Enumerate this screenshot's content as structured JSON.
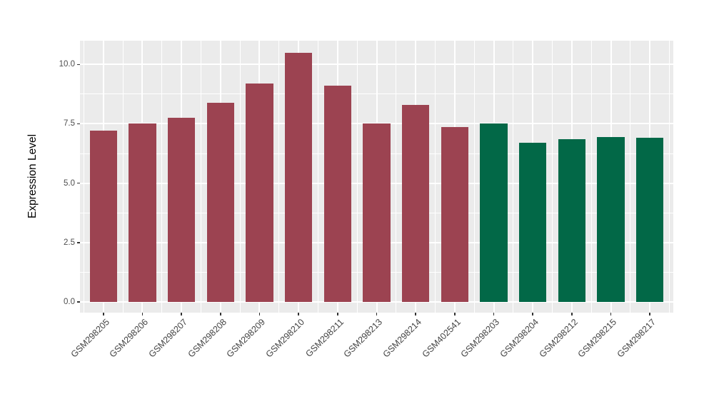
{
  "chart_data": {
    "type": "bar",
    "title": "",
    "xlabel": "",
    "ylabel": "Expression Level",
    "categories": [
      "GSM298205",
      "GSM298206",
      "GSM298207",
      "GSM298208",
      "GSM298209",
      "GSM298210",
      "GSM298211",
      "GSM298213",
      "GSM298214",
      "GSM402541",
      "GSM298203",
      "GSM298204",
      "GSM298212",
      "GSM298215",
      "GSM298217"
    ],
    "values": [
      7.2,
      7.5,
      7.75,
      8.4,
      9.2,
      10.5,
      9.1,
      7.5,
      8.3,
      7.35,
      7.5,
      6.7,
      6.85,
      6.95,
      6.9
    ],
    "groups": [
      "group1",
      "group1",
      "group1",
      "group1",
      "group1",
      "group1",
      "group1",
      "group1",
      "group1",
      "group1",
      "group2",
      "group2",
      "group2",
      "group2",
      "group2"
    ],
    "group_colors": {
      "group1": "#9C4351",
      "group2": "#026847"
    },
    "yticks": [
      0.0,
      2.5,
      5.0,
      7.5,
      10.0
    ],
    "ytick_labels": [
      "0.0",
      "2.5",
      "5.0",
      "7.5",
      "10.0"
    ],
    "yminor": [
      1.25,
      3.75,
      6.25,
      8.75
    ],
    "ylim": [
      -0.45,
      11.0
    ],
    "grid": true,
    "legend": "none",
    "panel_bg": "#EBEBEB",
    "grid_color": "#FFFFFF",
    "axis_text_color": "#4D4D4D"
  }
}
